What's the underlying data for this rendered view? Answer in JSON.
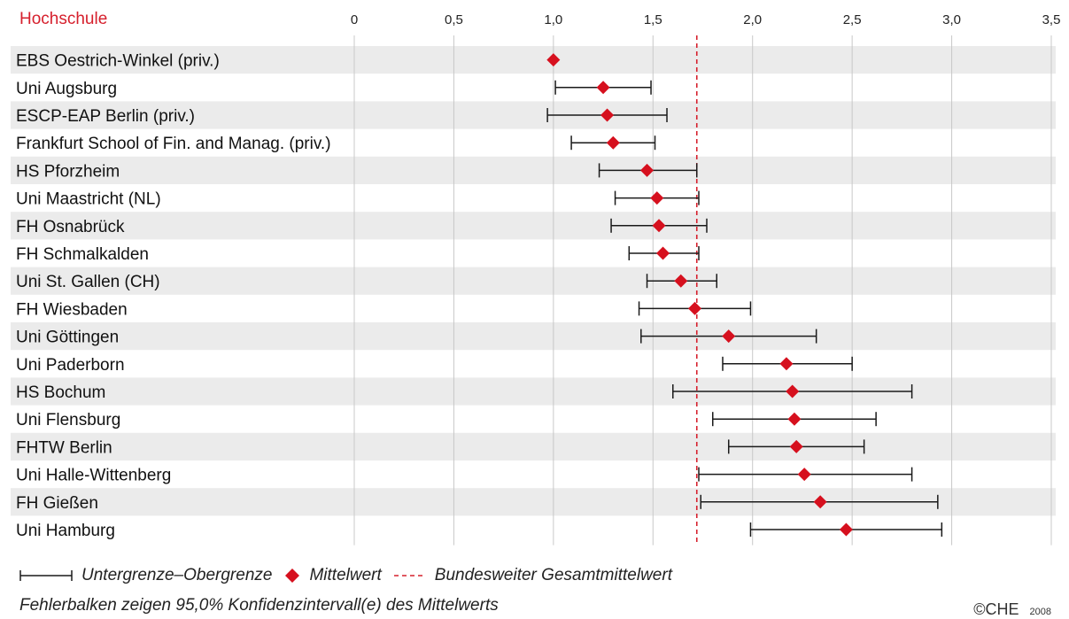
{
  "chart_data": {
    "type": "dot-errorbar",
    "column_header": "Hochschule",
    "x_ticks": [
      0,
      0.5,
      1.0,
      1.5,
      2.0,
      2.5,
      3.0,
      3.5
    ],
    "x_tick_labels": [
      "0",
      "0,5",
      "1,0",
      "1,5",
      "2,0",
      "2,5",
      "3,0",
      "3,5"
    ],
    "xlim": [
      0,
      3.5
    ],
    "grid": true,
    "reference_line": {
      "value": 1.72,
      "label": "Bundesweiter Gesamtmittelwert"
    },
    "rows": [
      {
        "name": "EBS Oestrich-Winkel (priv.)",
        "mean": 1.0,
        "lower": null,
        "upper": null
      },
      {
        "name": "Uni Augsburg",
        "mean": 1.25,
        "lower": 1.01,
        "upper": 1.49
      },
      {
        "name": "ESCP-EAP Berlin (priv.)",
        "mean": 1.27,
        "lower": 0.97,
        "upper": 1.57
      },
      {
        "name": "Frankfurt School of Fin. and Manag. (priv.)",
        "mean": 1.3,
        "lower": 1.09,
        "upper": 1.51
      },
      {
        "name": "HS Pforzheim",
        "mean": 1.47,
        "lower": 1.23,
        "upper": 1.72
      },
      {
        "name": "Uni Maastricht (NL)",
        "mean": 1.52,
        "lower": 1.31,
        "upper": 1.73
      },
      {
        "name": "FH Osnabrück",
        "mean": 1.53,
        "lower": 1.29,
        "upper": 1.77
      },
      {
        "name": "FH Schmalkalden",
        "mean": 1.55,
        "lower": 1.38,
        "upper": 1.73
      },
      {
        "name": "Uni St. Gallen (CH)",
        "mean": 1.64,
        "lower": 1.47,
        "upper": 1.82
      },
      {
        "name": "FH Wiesbaden",
        "mean": 1.71,
        "lower": 1.43,
        "upper": 1.99
      },
      {
        "name": "Uni Göttingen",
        "mean": 1.88,
        "lower": 1.44,
        "upper": 2.32
      },
      {
        "name": "Uni Paderborn",
        "mean": 2.17,
        "lower": 1.85,
        "upper": 2.5
      },
      {
        "name": "HS Bochum",
        "mean": 2.2,
        "lower": 1.6,
        "upper": 2.8
      },
      {
        "name": "Uni Flensburg",
        "mean": 2.21,
        "lower": 1.8,
        "upper": 2.62
      },
      {
        "name": "FHTW Berlin",
        "mean": 2.22,
        "lower": 1.88,
        "upper": 2.56
      },
      {
        "name": "Uni Halle-Wittenberg",
        "mean": 2.26,
        "lower": 1.73,
        "upper": 2.8
      },
      {
        "name": "FH Gießen",
        "mean": 2.34,
        "lower": 1.74,
        "upper": 2.93
      },
      {
        "name": "Uni Hamburg",
        "mean": 2.47,
        "lower": 1.99,
        "upper": 2.95
      }
    ],
    "colors": {
      "header": "#d6202d",
      "marker": "#d6101e",
      "reference_line": "#d6202d",
      "row_band": "#ebebeb",
      "grid": "#c8c8c8",
      "errorbar": "#1a1a1a"
    }
  },
  "legend": {
    "range_label": "Untergrenze–Obergrenze",
    "mean_label": "Mittelwert",
    "reference_label": "Bundesweiter Gesamtmittelwert"
  },
  "footnote": "Fehlerbalken zeigen 95,0% Konfidenzintervall(e) des Mittelwerts",
  "copyright": {
    "brand": "©CHE",
    "year": "2008"
  }
}
